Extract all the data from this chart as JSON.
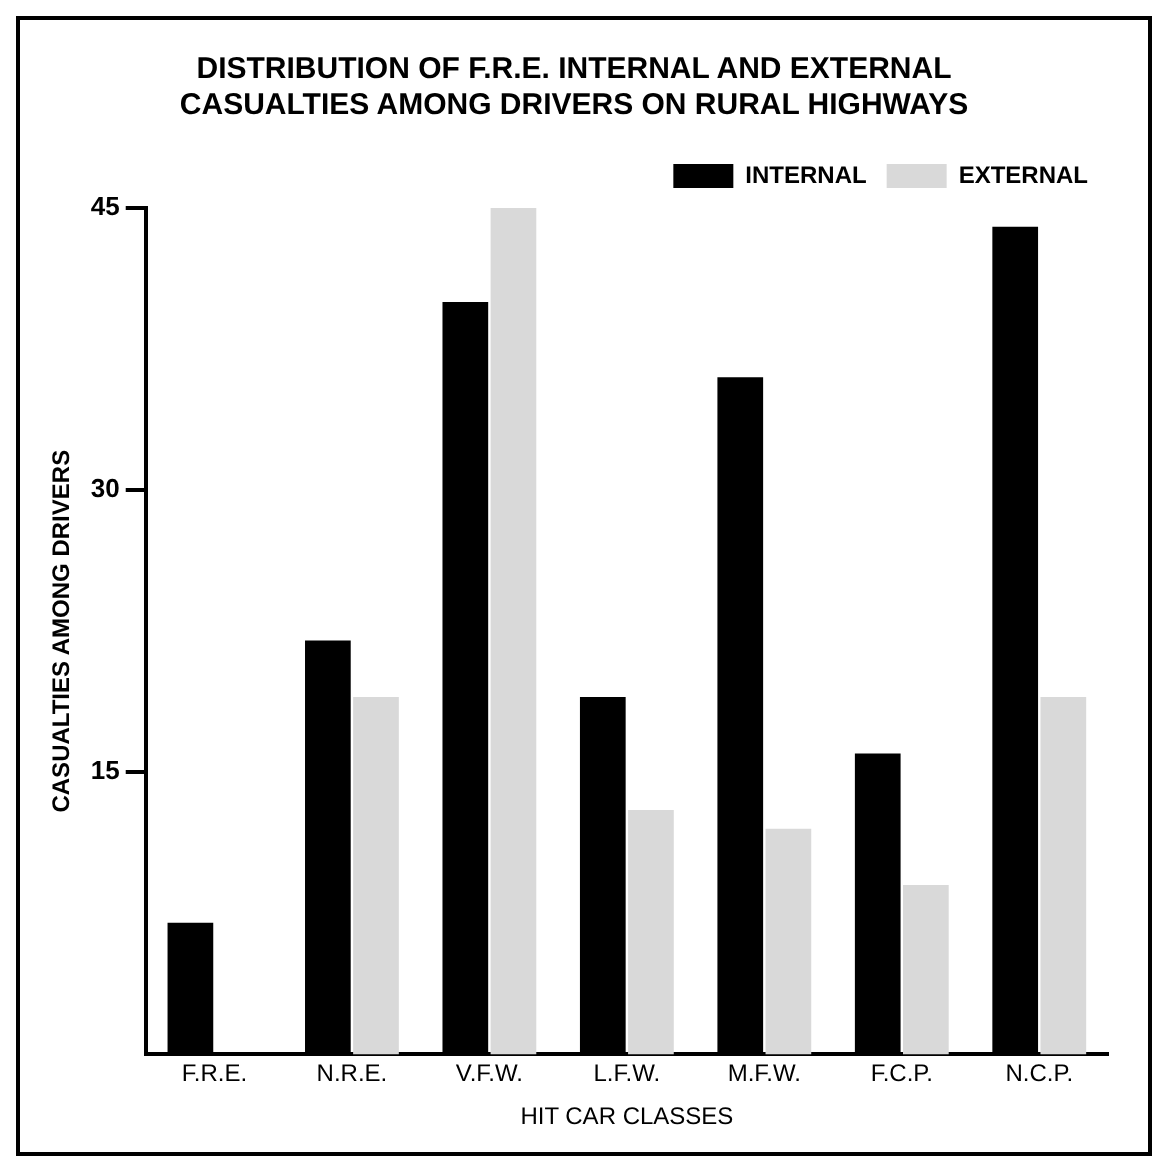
{
  "chart_data": {
    "type": "bar",
    "title": "DISTRIBUTION OF F.R.E. INTERNAL AND EXTERNAL\nCASUALTIES AMONG DRIVERS ON RURAL HIGHWAYS",
    "xlabel": "HIT CAR CLASSES",
    "ylabel": "CASUALTIES AMONG DRIVERS",
    "categories": [
      "F.R.E.",
      "N.R.E.",
      "V.F.W.",
      "L.F.W.",
      "M.F.W.",
      "F.C.P.",
      "N.C.P."
    ],
    "series": [
      {
        "name": "INTERNAL",
        "color": "#000000",
        "values": [
          7,
          22,
          40,
          19,
          36,
          16,
          44
        ]
      },
      {
        "name": "EXTERNAL",
        "color": "#d9d9d9",
        "values": [
          null,
          19,
          45,
          13,
          12,
          9,
          19
        ]
      }
    ],
    "ylim": [
      0,
      45
    ],
    "yticks": [
      15,
      30,
      45
    ],
    "grid": false,
    "legend": "top right"
  }
}
